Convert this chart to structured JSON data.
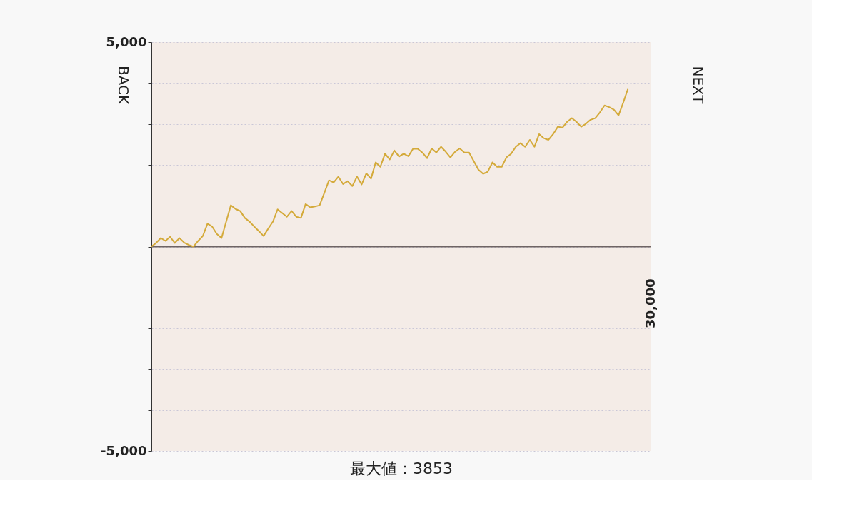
{
  "chart_data": {
    "type": "line",
    "categories": [
      null,
      null,
      null,
      null,
      null,
      null,
      null,
      null,
      null,
      null,
      null,
      null,
      null,
      null,
      null,
      null,
      null,
      null,
      null,
      null,
      null,
      null,
      null,
      null,
      null,
      null,
      null,
      null,
      null,
      null,
      null,
      null,
      null,
      null,
      null,
      null,
      null,
      null,
      null,
      null,
      null,
      null,
      null,
      null,
      null,
      null,
      null,
      null,
      null,
      null,
      null,
      null,
      null,
      null,
      null,
      null,
      null,
      null,
      null,
      null,
      null,
      null,
      null,
      null,
      null,
      null,
      null,
      null,
      null,
      null,
      null,
      null,
      null,
      null,
      null,
      null,
      null,
      null,
      null,
      null,
      null,
      null,
      null,
      null,
      null,
      null,
      null,
      null,
      null,
      null,
      null,
      null,
      null,
      null,
      null,
      null,
      null,
      null,
      null,
      null,
      null,
      null,
      null,
      null,
      null,
      null,
      null,
      null
    ],
    "series": [
      {
        "color": "#d4aa3a",
        "values": [
          0,
          90,
          210,
          140,
          240,
          90,
          210,
          100,
          40,
          0,
          140,
          260,
          560,
          490,
          310,
          210,
          610,
          1010,
          920,
          870,
          700,
          610,
          490,
          380,
          260,
          440,
          610,
          910,
          820,
          730,
          870,
          730,
          700,
          1040,
          960,
          980,
          1010,
          1310,
          1620,
          1570,
          1710,
          1530,
          1600,
          1480,
          1710,
          1520,
          1790,
          1660,
          2060,
          1950,
          2270,
          2130,
          2350,
          2200,
          2270,
          2210,
          2390,
          2390,
          2300,
          2160,
          2400,
          2300,
          2440,
          2320,
          2180,
          2320,
          2400,
          2300,
          2300,
          2090,
          1880,
          1780,
          1830,
          2060,
          1950,
          1950,
          2180,
          2270,
          2440,
          2530,
          2440,
          2610,
          2440,
          2750,
          2650,
          2610,
          2750,
          2930,
          2910,
          3050,
          3140,
          3050,
          2930,
          3000,
          3100,
          3140,
          3280,
          3450,
          3410,
          3350,
          3210,
          3520,
          3853,
          null,
          null,
          null,
          null,
          null
        ]
      }
    ],
    "ylim": [
      -5000,
      5000
    ],
    "yticks": [
      {
        "value": -5000,
        "label": "-5,000"
      },
      {
        "value": -4000,
        "label": null
      },
      {
        "value": -3000,
        "label": null
      },
      {
        "value": -2000,
        "label": null
      },
      {
        "value": -1000,
        "label": null
      },
      {
        "value": 0,
        "label": null
      },
      {
        "value": 1000,
        "label": null
      },
      {
        "value": 2000,
        "label": null
      },
      {
        "value": 3000,
        "label": null
      },
      {
        "value": 4000,
        "label": null
      },
      {
        "value": 5000,
        "label": "5,000"
      }
    ],
    "grid": "y",
    "ref_lines": [
      {
        "axis": "y",
        "value": 0,
        "color": "#6e6464"
      }
    ],
    "annotations": [
      "最大値：3853",
      "BACK",
      "NEXT",
      "30,000"
    ]
  }
}
